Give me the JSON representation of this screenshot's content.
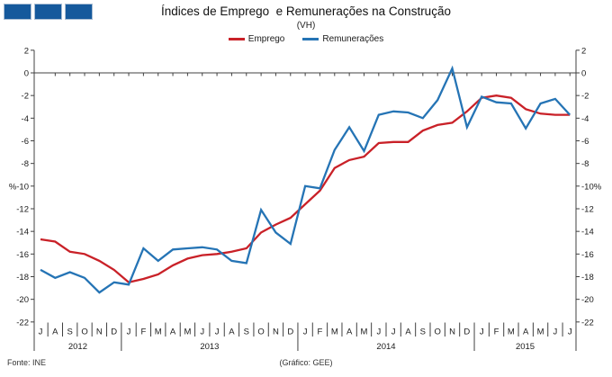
{
  "header": {
    "title": "Índices de Emprego  e Remunerações na Construção",
    "subtitle": "(VH)"
  },
  "logo": {
    "name": "three-blue-squares-logo",
    "square_color": "#15599c",
    "square_border": "#a9bdd3",
    "count": 3
  },
  "footer": {
    "source": "Fonte: INE",
    "credit": "(Gráfico: GEE)"
  },
  "chart_data": {
    "type": "line",
    "title": "Índices de Emprego  e Remunerações na Construção",
    "subtitle": "(VH)",
    "ylabel": "%",
    "ylim": [
      -22,
      2
    ],
    "ytick_step": 2,
    "yticks": [
      "2",
      "0",
      "-2",
      "-4",
      "-6",
      "-8",
      "-10",
      "-12",
      "-14",
      "-16",
      "-18",
      "-20",
      "-22"
    ],
    "grid": false,
    "legend_position": "top-center",
    "axis_color": "#404040",
    "categories": [
      "J",
      "A",
      "S",
      "O",
      "N",
      "D",
      "J",
      "F",
      "M",
      "A",
      "M",
      "J",
      "J",
      "A",
      "S",
      "O",
      "N",
      "D",
      "J",
      "F",
      "M",
      "A",
      "M",
      "J",
      "J",
      "A",
      "S",
      "O",
      "N",
      "D",
      "J",
      "F",
      "M",
      "A",
      "M",
      "J",
      "J"
    ],
    "years": [
      {
        "label": "2012",
        "span": 6
      },
      {
        "label": "2013",
        "span": 12
      },
      {
        "label": "2014",
        "span": 12
      },
      {
        "label": "2015",
        "span": 7
      }
    ],
    "series": [
      {
        "name": "Emprego",
        "color": "#c92128",
        "values": [
          -14.7,
          -14.9,
          -15.8,
          -16.0,
          -16.6,
          -17.4,
          -18.5,
          -18.2,
          -17.8,
          -17.0,
          -16.4,
          -16.1,
          -16.0,
          -15.8,
          -15.5,
          -14.1,
          -13.4,
          -12.8,
          -11.6,
          -10.4,
          -8.4,
          -7.7,
          -7.4,
          -6.2,
          -6.1,
          -6.1,
          -5.1,
          -4.6,
          -4.4,
          -3.4,
          -2.2,
          -2.0,
          -2.2,
          -3.2,
          -3.6,
          -3.7,
          -3.7
        ]
      },
      {
        "name": "Remunerações",
        "color": "#2574b5",
        "values": [
          -17.4,
          -18.1,
          -17.6,
          -18.1,
          -19.4,
          -18.5,
          -18.7,
          -15.5,
          -16.6,
          -15.6,
          -15.5,
          -15.4,
          -15.6,
          -16.6,
          -16.8,
          -12.1,
          -14.1,
          -15.1,
          -10.0,
          -10.2,
          -6.8,
          -4.8,
          -6.9,
          -3.7,
          -3.4,
          -3.5,
          -4.0,
          -2.4,
          0.4,
          -4.8,
          -2.1,
          -2.6,
          -2.7,
          -4.9,
          -2.7,
          -2.3,
          -3.7
        ]
      }
    ]
  }
}
